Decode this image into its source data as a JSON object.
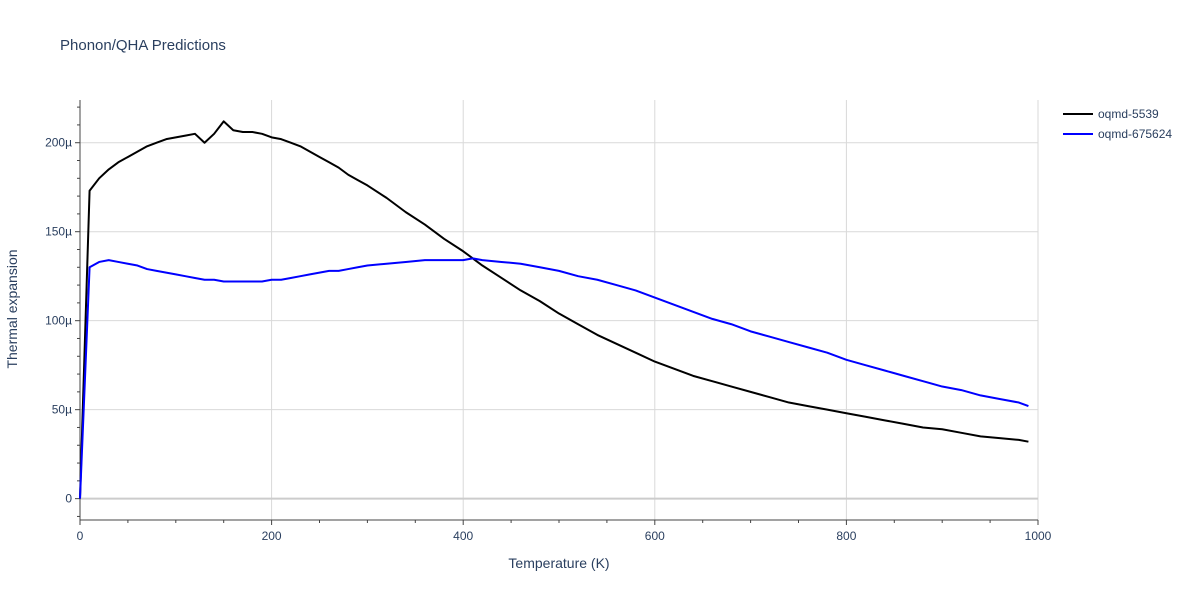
{
  "chart_data": {
    "type": "line",
    "title": "Phonon/QHA Predictions",
    "xlabel": "Temperature (K)",
    "ylabel": "Thermal expansion",
    "xlim": [
      0,
      1000
    ],
    "ylim": [
      -1.2e-05,
      0.000224
    ],
    "x_ticks": [
      0,
      200,
      400,
      600,
      800,
      1000
    ],
    "x_tick_labels": [
      "0",
      "200",
      "400",
      "600",
      "800",
      "1000"
    ],
    "y_ticks": [
      0,
      5e-05,
      0.0001,
      0.00015,
      0.0002
    ],
    "y_tick_labels": [
      "0",
      "50µ",
      "100µ",
      "150µ",
      "200µ"
    ],
    "grid": true,
    "legend_position": "top-right",
    "series": [
      {
        "name": "oqmd-5539",
        "color": "#000000",
        "x": [
          0,
          10,
          20,
          30,
          40,
          50,
          60,
          70,
          80,
          90,
          100,
          110,
          120,
          130,
          140,
          150,
          160,
          170,
          180,
          190,
          200,
          210,
          220,
          230,
          240,
          250,
          260,
          270,
          280,
          290,
          300,
          320,
          340,
          360,
          380,
          400,
          420,
          440,
          460,
          480,
          500,
          520,
          540,
          560,
          580,
          600,
          620,
          640,
          660,
          680,
          700,
          720,
          740,
          760,
          780,
          800,
          820,
          840,
          860,
          880,
          900,
          920,
          940,
          960,
          980,
          990
        ],
        "y": [
          0,
          0.000173,
          0.00018,
          0.000185,
          0.000189,
          0.000192,
          0.000195,
          0.000198,
          0.0002,
          0.000202,
          0.000203,
          0.000204,
          0.000205,
          0.0002,
          0.000205,
          0.000212,
          0.000207,
          0.000206,
          0.000206,
          0.000205,
          0.000203,
          0.000202,
          0.0002,
          0.000198,
          0.000195,
          0.000192,
          0.000189,
          0.000186,
          0.000182,
          0.000179,
          0.000176,
          0.000169,
          0.000161,
          0.000154,
          0.000146,
          0.000139,
          0.000131,
          0.000124,
          0.000117,
          0.000111,
          0.000104,
          9.8e-05,
          9.2e-05,
          8.7e-05,
          8.2e-05,
          7.7e-05,
          7.3e-05,
          6.9e-05,
          6.6e-05,
          6.3e-05,
          6e-05,
          5.7e-05,
          5.4e-05,
          5.2e-05,
          5e-05,
          4.8e-05,
          4.6e-05,
          4.4e-05,
          4.2e-05,
          4e-05,
          3.9e-05,
          3.7e-05,
          3.5e-05,
          3.4e-05,
          3.3e-05,
          3.2e-05
        ]
      },
      {
        "name": "oqmd-675624",
        "color": "#0000ff",
        "x": [
          0,
          10,
          20,
          30,
          40,
          50,
          60,
          70,
          80,
          90,
          100,
          110,
          120,
          130,
          140,
          150,
          160,
          170,
          180,
          190,
          200,
          210,
          220,
          230,
          240,
          250,
          260,
          270,
          280,
          290,
          300,
          320,
          340,
          360,
          380,
          400,
          410,
          420,
          440,
          460,
          480,
          500,
          520,
          540,
          560,
          580,
          600,
          620,
          640,
          660,
          680,
          700,
          720,
          740,
          760,
          780,
          800,
          820,
          840,
          860,
          880,
          900,
          920,
          940,
          960,
          980,
          990
        ],
        "y": [
          0,
          0.00013,
          0.000133,
          0.000134,
          0.000133,
          0.000132,
          0.000131,
          0.000129,
          0.000128,
          0.000127,
          0.000126,
          0.000125,
          0.000124,
          0.000123,
          0.000123,
          0.000122,
          0.000122,
          0.000122,
          0.000122,
          0.000122,
          0.000123,
          0.000123,
          0.000124,
          0.000125,
          0.000126,
          0.000127,
          0.000128,
          0.000128,
          0.000129,
          0.00013,
          0.000131,
          0.000132,
          0.000133,
          0.000134,
          0.000134,
          0.000134,
          0.000135,
          0.000134,
          0.000133,
          0.000132,
          0.00013,
          0.000128,
          0.000125,
          0.000123,
          0.00012,
          0.000117,
          0.000113,
          0.000109,
          0.000105,
          0.000101,
          9.8e-05,
          9.4e-05,
          9.1e-05,
          8.8e-05,
          8.5e-05,
          8.2e-05,
          7.8e-05,
          7.5e-05,
          7.2e-05,
          6.9e-05,
          6.6e-05,
          6.3e-05,
          6.1e-05,
          5.8e-05,
          5.6e-05,
          5.4e-05,
          5.2e-05
        ]
      }
    ]
  }
}
